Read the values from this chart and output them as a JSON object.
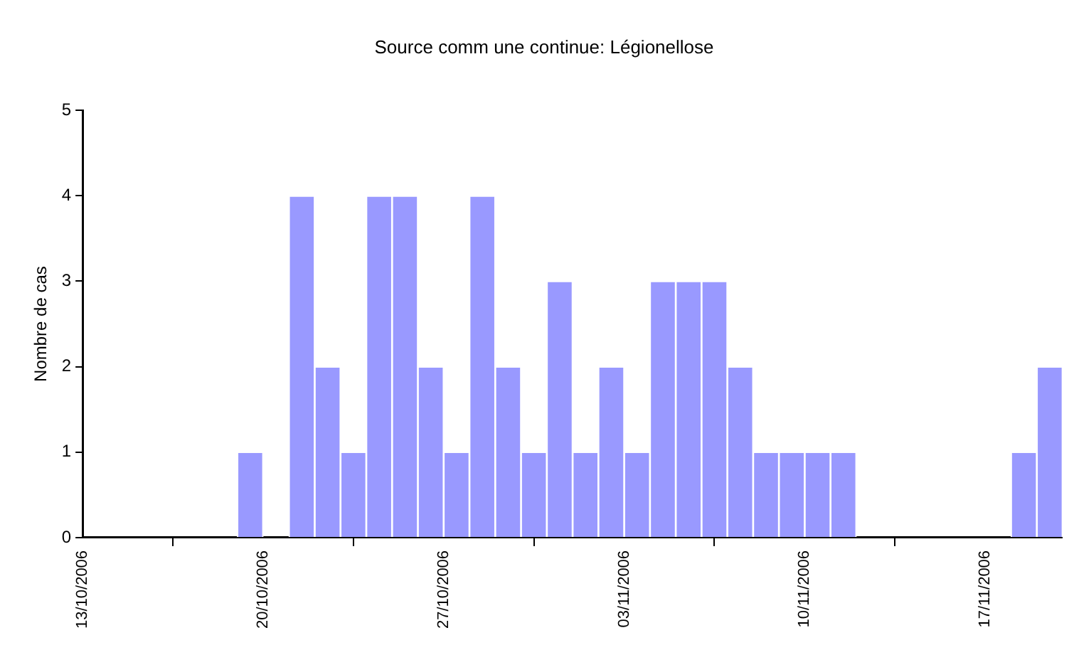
{
  "chart_data": {
    "type": "histogram",
    "title": "Source comm une continue: Légionellose",
    "ylabel": "Nombre de cas",
    "bins": [
      "2006-10-13",
      "2006-10-14",
      "2006-10-15",
      "2006-10-16",
      "2006-10-17",
      "2006-10-18",
      "2006-10-19",
      "2006-10-20",
      "2006-10-21",
      "2006-10-22",
      "2006-10-23",
      "2006-10-24",
      "2006-10-25",
      "2006-10-26",
      "2006-10-27",
      "2006-10-28",
      "2006-10-29",
      "2006-10-30",
      "2006-10-31",
      "2006-11-01",
      "2006-11-02",
      "2006-11-03",
      "2006-11-04",
      "2006-11-05",
      "2006-11-06",
      "2006-11-07",
      "2006-11-08",
      "2006-11-09",
      "2006-11-10",
      "2006-11-11",
      "2006-11-12",
      "2006-11-13",
      "2006-11-14",
      "2006-11-15",
      "2006-11-16",
      "2006-11-17",
      "2006-11-18",
      "2006-11-19",
      "2006-11-20"
    ],
    "values": [
      0,
      0,
      0,
      0,
      0,
      0,
      1,
      0,
      4,
      2,
      1,
      4,
      4,
      2,
      1,
      4,
      2,
      1,
      3,
      1,
      2,
      1,
      3,
      3,
      3,
      2,
      1,
      1,
      1,
      1,
      0,
      0,
      0,
      0,
      0,
      0,
      1,
      2
    ],
    "color": "#9999ff",
    "xlim": [
      "2006-10-13",
      "2006-11-20"
    ],
    "xticks": [
      {
        "value": "2006-10-13",
        "label": "13/10/2006"
      },
      {
        "value": "2006-10-20",
        "label": "20/10/2006"
      },
      {
        "value": "2006-10-27",
        "label": "27/10/2006"
      },
      {
        "value": "2006-11-03",
        "label": "03/11/2006"
      },
      {
        "value": "2006-11-10",
        "label": "10/11/2006"
      },
      {
        "value": "2006-11-17",
        "label": "17/11/2006"
      }
    ],
    "ylim": [
      0,
      5
    ],
    "yticks": [
      0,
      1,
      2,
      3,
      4,
      5
    ],
    "grid": false,
    "legend": false
  }
}
